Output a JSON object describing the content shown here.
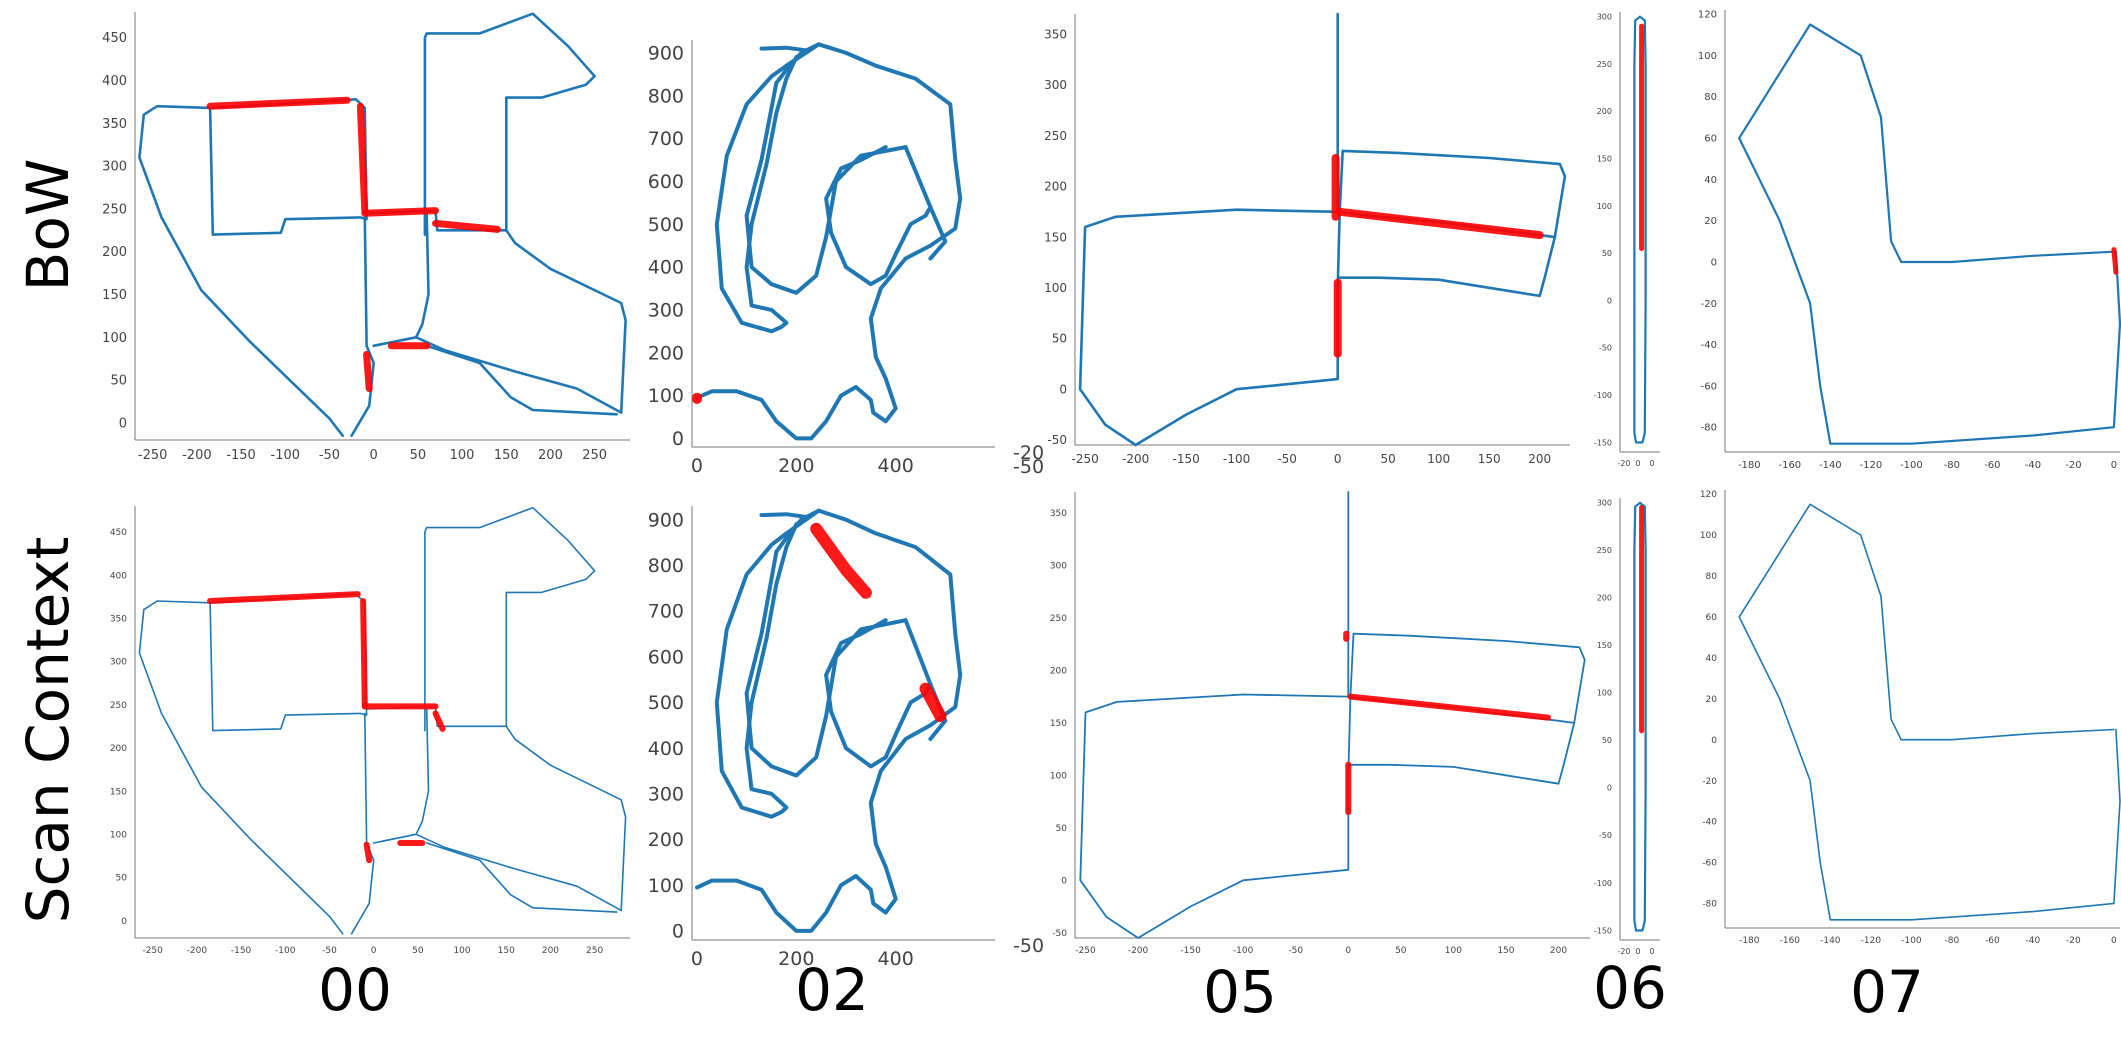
{
  "rows": [
    "BoW",
    "Scan Context"
  ],
  "sequences": [
    "00",
    "02",
    "05",
    "06",
    "07"
  ],
  "colors": {
    "trajectory": "#1f77b4",
    "loop": "#ff0000"
  },
  "chart_data": [
    {
      "type": "scatter",
      "row": "BoW",
      "sequence": "00",
      "xticks": [
        "-250",
        "-200",
        "-150",
        "-100",
        "-50",
        "0",
        "50",
        "100",
        "150",
        "200",
        "250"
      ],
      "yticks": [
        "0",
        "50",
        "100",
        "150",
        "200",
        "250",
        "300",
        "350",
        "400",
        "450"
      ],
      "xlim": [
        -270,
        290
      ],
      "ylim": [
        -20,
        480
      ]
    },
    {
      "type": "scatter",
      "row": "BoW",
      "sequence": "02",
      "xticks": [
        "0",
        "200",
        "400"
      ],
      "yticks": [
        "0",
        "100",
        "200",
        "300",
        "400",
        "500",
        "600",
        "700",
        "800",
        "900"
      ],
      "extra_labels": [
        "-20",
        "-50"
      ],
      "xlim": [
        -10,
        600
      ],
      "ylim": [
        -20,
        930
      ]
    },
    {
      "type": "scatter",
      "row": "BoW",
      "sequence": "05",
      "xticks": [
        "-250",
        "-200",
        "-150",
        "-100",
        "-50",
        "0",
        "50",
        "100",
        "150",
        "200"
      ],
      "yticks": [
        "-50",
        "0",
        "50",
        "100",
        "150",
        "200",
        "250",
        "300",
        "350"
      ],
      "xlim": [
        -260,
        230
      ],
      "ylim": [
        -55,
        370
      ]
    },
    {
      "type": "scatter",
      "row": "BoW",
      "sequence": "06",
      "xticks": [
        "-20",
        "0",
        "0"
      ],
      "yticks": [
        "-150",
        "-100",
        "-50",
        "0",
        "50",
        "100",
        "150",
        "200",
        "250",
        "300"
      ],
      "xlim": [
        -25,
        25
      ],
      "ylim": [
        -160,
        305
      ]
    },
    {
      "type": "scatter",
      "row": "BoW",
      "sequence": "07",
      "xticks": [
        "-180",
        "-160",
        "-140",
        "-120",
        "-100",
        "-80",
        "-60",
        "-40",
        "-20",
        "0"
      ],
      "yticks": [
        "-80",
        "-60",
        "-40",
        "-20",
        "0",
        "20",
        "40",
        "60",
        "80",
        "100",
        "120"
      ],
      "xlim": [
        -192,
        3
      ],
      "ylim": [
        -92,
        122
      ]
    },
    {
      "type": "scatter",
      "row": "Scan Context",
      "sequence": "00",
      "xticks": [
        "-250",
        "-200",
        "-150",
        "-100",
        "-50",
        "0",
        "50",
        "100",
        "150",
        "200",
        "250"
      ],
      "yticks": [
        "0",
        "50",
        "100",
        "150",
        "200",
        "250",
        "300",
        "350",
        "400",
        "450"
      ],
      "xlim": [
        -270,
        290
      ],
      "ylim": [
        -20,
        480
      ]
    },
    {
      "type": "scatter",
      "row": "Scan Context",
      "sequence": "02",
      "xticks": [
        "0",
        "200",
        "400"
      ],
      "yticks": [
        "0",
        "100",
        "200",
        "300",
        "400",
        "500",
        "600",
        "700",
        "800",
        "900"
      ],
      "extra_labels": [
        "-50"
      ],
      "xlim": [
        -10,
        600
      ],
      "ylim": [
        -20,
        930
      ]
    },
    {
      "type": "scatter",
      "row": "Scan Context",
      "sequence": "05",
      "xticks": [
        "-250",
        "-200",
        "-150",
        "-100",
        "-50",
        "0",
        "50",
        "100",
        "150",
        "200"
      ],
      "yticks": [
        "-50",
        "0",
        "50",
        "100",
        "150",
        "200",
        "250",
        "300",
        "350"
      ],
      "xlim": [
        -260,
        230
      ],
      "ylim": [
        -55,
        370
      ]
    },
    {
      "type": "scatter",
      "row": "Scan Context",
      "sequence": "06",
      "xticks": [
        "-20",
        "0",
        "0"
      ],
      "yticks": [
        "-150",
        "-100",
        "-50",
        "0",
        "50",
        "100",
        "150",
        "200",
        "250",
        "300"
      ],
      "xlim": [
        -25,
        25
      ],
      "ylim": [
        -160,
        305
      ]
    },
    {
      "type": "scatter",
      "row": "Scan Context",
      "sequence": "07",
      "xticks": [
        "-180",
        "-160",
        "-140",
        "-120",
        "-100",
        "-80",
        "-60",
        "-40",
        "-20",
        "0"
      ],
      "yticks": [
        "-80",
        "-60",
        "-40",
        "-20",
        "0",
        "20",
        "40",
        "60",
        "80",
        "100",
        "120"
      ],
      "xlim": [
        -192,
        3
      ],
      "ylim": [
        -92,
        122
      ]
    }
  ]
}
